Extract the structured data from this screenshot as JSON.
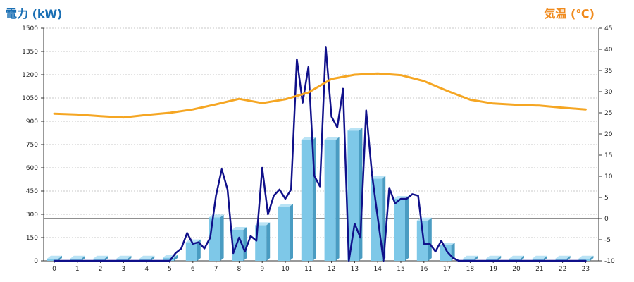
{
  "chart_data": {
    "type": "bar",
    "ylabel_left": "電力 (kW)",
    "ylabel_right": "気温 (℃)",
    "categories": [
      "0",
      "1",
      "2",
      "3",
      "4",
      "5",
      "6",
      "7",
      "8",
      "9",
      "10",
      "11",
      "12",
      "13",
      "14",
      "15",
      "16",
      "17",
      "18",
      "19",
      "20",
      "21",
      "22",
      "23"
    ],
    "left_axis": {
      "min": 0,
      "max": 1500,
      "ticks": [
        "0",
        "150",
        "300",
        "450",
        "600",
        "750",
        "900",
        "1050",
        "1200",
        "1350",
        "1500"
      ]
    },
    "right_axis": {
      "min": -10,
      "max": 45,
      "ticks": [
        "-10",
        "-5",
        "0",
        "5",
        "10",
        "15",
        "20",
        "25",
        "30",
        "35",
        "40",
        "45"
      ]
    },
    "grid": true,
    "colors": {
      "bar": "#7ec8e8",
      "bar_side": "#4a9cc2",
      "bar_top": "#b9e3f5",
      "power_line": "#10108a",
      "temp_line": "#f5a623",
      "title_left": "#1a6fb4",
      "title_right": "#f08a1c"
    },
    "series": [
      {
        "kind": "bar",
        "axis": "left",
        "values": [
          15,
          15,
          15,
          15,
          15,
          20,
          120,
          280,
          200,
          230,
          350,
          780,
          780,
          840,
          530,
          400,
          260,
          100,
          15,
          15,
          15,
          15,
          15,
          15
        ]
      },
      {
        "kind": "line",
        "axis": "left",
        "x": [
          0,
          1,
          2,
          3,
          4,
          5,
          5.25,
          5.5,
          5.75,
          6,
          6.25,
          6.5,
          6.75,
          7,
          7.25,
          7.5,
          7.75,
          8,
          8.25,
          8.5,
          8.75,
          9,
          9.25,
          9.5,
          9.75,
          10,
          10.25,
          10.5,
          10.75,
          11,
          11.25,
          11.5,
          11.75,
          12,
          12.25,
          12.5,
          12.75,
          13,
          13.25,
          13.5,
          13.75,
          14,
          14.25,
          14.5,
          14.75,
          15,
          15.25,
          15.5,
          15.75,
          16,
          16.25,
          16.5,
          16.75,
          17,
          17.25,
          17.5,
          17.75,
          18,
          19,
          20,
          21,
          22,
          23
        ],
        "values": [
          0,
          0,
          0,
          0,
          0,
          0,
          50,
          80,
          180,
          110,
          120,
          80,
          150,
          420,
          590,
          460,
          50,
          150,
          60,
          160,
          130,
          600,
          300,
          420,
          460,
          400,
          460,
          1300,
          1020,
          1250,
          550,
          480,
          1380,
          930,
          860,
          1110,
          0,
          240,
          150,
          970,
          560,
          280,
          0,
          470,
          370,
          400,
          400,
          430,
          420,
          110,
          110,
          60,
          130,
          60,
          20,
          0,
          0,
          0,
          0,
          0,
          0,
          0,
          0
        ]
      },
      {
        "kind": "line",
        "axis": "right",
        "x": [
          0,
          1,
          2,
          3,
          4,
          5,
          6,
          7,
          8,
          9,
          10,
          11,
          12,
          13,
          14,
          15,
          16,
          17,
          18,
          19,
          20,
          21,
          22,
          23
        ],
        "values": [
          24.8,
          24.6,
          24.2,
          23.9,
          24.5,
          25.0,
          25.8,
          27.0,
          28.3,
          27.3,
          28.2,
          29.8,
          33.0,
          34.0,
          34.3,
          33.9,
          32.5,
          30.2,
          28.1,
          27.2,
          26.9,
          26.7,
          26.2,
          25.8
        ]
      }
    ]
  }
}
